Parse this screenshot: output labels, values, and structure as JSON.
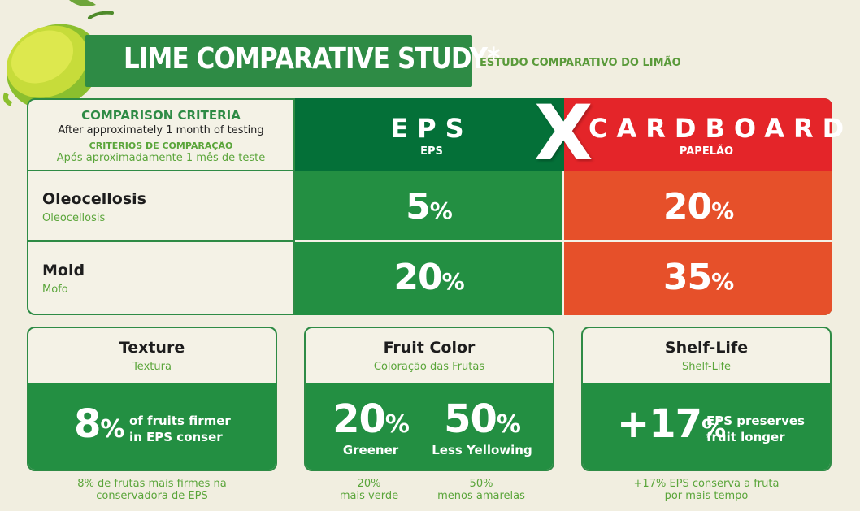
{
  "title": "LIME COMPARATIVE STUDY*",
  "subtitle": "ESTUDO COMPARATIVO DO LIMÃO",
  "criteria": {
    "heading_en": "COMPARISON CRITERIA",
    "note_en": "After approximately 1 month of testing",
    "heading_pt": "CRITÉRIOS DE COMPARAÇÃO",
    "note_pt": "Após aproximadamente 1 mês de teste"
  },
  "columns": {
    "eps": {
      "title": "EPS",
      "sub": "EPS",
      "color": "#047038"
    },
    "versus": "X",
    "cardboard": {
      "title": "CARDBOARD",
      "sub": "PAPELÃO",
      "color": "#e42529"
    }
  },
  "rows": [
    {
      "label": "Oleocellosis",
      "label_pt": "Oleocellosis",
      "eps_value": "5",
      "cardboard_value": "20",
      "unit": "%"
    },
    {
      "label": "Mold",
      "label_pt": "Mofo",
      "eps_value": "20",
      "cardboard_value": "35",
      "unit": "%"
    }
  ],
  "cards": {
    "texture": {
      "title": "Texture",
      "title_pt": "Textura",
      "value": "8",
      "unit": "%",
      "desc_line1": "of fruits firmer",
      "desc_line2": "in EPS conser",
      "footer_line1": "8% de frutas mais firmes na",
      "footer_line2": "conservadora de EPS"
    },
    "color": {
      "title": "Fruit Color",
      "title_pt": "Coloração das Frutas",
      "value1": "20",
      "label1": "Greener",
      "unit": "%",
      "value2": "50",
      "label2": "Less Yellowing",
      "footer1_line1": "20%",
      "footer1_line2": "mais verde",
      "footer2_line1": "50%",
      "footer2_line2": "menos amarelas"
    },
    "shelf": {
      "title": "Shelf-Life",
      "title_pt": "Shelf-Life",
      "value": "+17",
      "unit": "%",
      "desc_line1": "EPS preserves",
      "desc_line2": "fruit longer",
      "footer_line1": "+17% EPS conserva a fruta",
      "footer_line2": "por mais tempo"
    }
  },
  "colors": {
    "green": "#238f42",
    "dark_green": "#047038",
    "orange": "#e6502a",
    "red": "#e42529",
    "accent": "#5aa53a"
  }
}
